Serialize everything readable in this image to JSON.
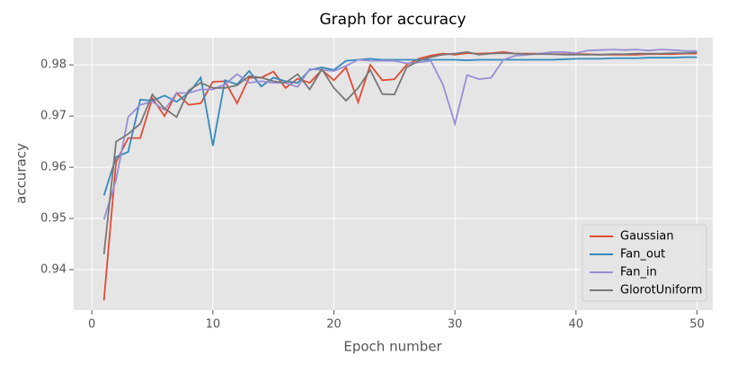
{
  "chart_data": {
    "type": "line",
    "title": "Graph for accuracy",
    "x_label": "Epoch number",
    "y_label": "accuracy",
    "x": [
      1,
      2,
      3,
      4,
      5,
      6,
      7,
      8,
      9,
      10,
      11,
      12,
      13,
      14,
      15,
      16,
      17,
      18,
      19,
      20,
      21,
      22,
      23,
      24,
      25,
      26,
      27,
      28,
      29,
      30,
      31,
      32,
      33,
      34,
      35,
      36,
      37,
      38,
      39,
      40,
      41,
      42,
      43,
      44,
      45,
      46,
      47,
      48,
      49,
      50
    ],
    "series": [
      {
        "name": "Gaussian",
        "color": "#E24A33",
        "values": [
          0.934,
          0.961,
          0.9657,
          0.9657,
          0.9735,
          0.97,
          0.9745,
          0.9722,
          0.9725,
          0.9767,
          0.9768,
          0.9725,
          0.9775,
          0.9775,
          0.9787,
          0.9755,
          0.9773,
          0.9765,
          0.979,
          0.977,
          0.9795,
          0.9727,
          0.98,
          0.977,
          0.9772,
          0.98,
          0.9812,
          0.9818,
          0.9822,
          0.982,
          0.9823,
          0.9822,
          0.9823,
          0.9825,
          0.9822,
          0.9822,
          0.9822,
          0.9821,
          0.9821,
          0.9821,
          0.9821,
          0.982,
          0.982,
          0.982,
          0.982,
          0.9821,
          0.9821,
          0.9821,
          0.9822,
          0.9822
        ]
      },
      {
        "name": "Fan_out",
        "color": "#348ABD",
        "values": [
          0.9545,
          0.962,
          0.963,
          0.9732,
          0.973,
          0.974,
          0.9728,
          0.9745,
          0.9775,
          0.9642,
          0.977,
          0.9762,
          0.9788,
          0.9758,
          0.9775,
          0.9768,
          0.9765,
          0.979,
          0.9795,
          0.979,
          0.9808,
          0.981,
          0.9812,
          0.981,
          0.981,
          0.981,
          0.981,
          0.981,
          0.981,
          0.981,
          0.9809,
          0.981,
          0.981,
          0.981,
          0.981,
          0.981,
          0.981,
          0.981,
          0.9811,
          0.9812,
          0.9812,
          0.9812,
          0.9813,
          0.9813,
          0.9813,
          0.9814,
          0.9814,
          0.9814,
          0.9815,
          0.9815
        ]
      },
      {
        "name": "Fan_in",
        "color": "#988ED5",
        "values": [
          0.9498,
          0.9575,
          0.9698,
          0.9722,
          0.9728,
          0.9712,
          0.9745,
          0.9745,
          0.9752,
          0.9752,
          0.9762,
          0.9782,
          0.9765,
          0.9768,
          0.9765,
          0.9765,
          0.9757,
          0.9792,
          0.979,
          0.9788,
          0.9798,
          0.981,
          0.9808,
          0.9808,
          0.9808,
          0.9803,
          0.9805,
          0.9808,
          0.9762,
          0.9685,
          0.978,
          0.9772,
          0.9775,
          0.981,
          0.9818,
          0.982,
          0.9822,
          0.9825,
          0.9825,
          0.9823,
          0.9828,
          0.9829,
          0.983,
          0.9829,
          0.983,
          0.9828,
          0.983,
          0.9829,
          0.9827,
          0.9827
        ]
      },
      {
        "name": "GlorotUniform",
        "color": "#777777",
        "values": [
          0.943,
          0.965,
          0.9665,
          0.9685,
          0.9742,
          0.9715,
          0.9698,
          0.975,
          0.9765,
          0.9755,
          0.9755,
          0.976,
          0.9778,
          0.9775,
          0.9768,
          0.9765,
          0.9782,
          0.9752,
          0.9792,
          0.9755,
          0.973,
          0.9755,
          0.979,
          0.9743,
          0.9742,
          0.9795,
          0.9808,
          0.9815,
          0.982,
          0.9822,
          0.9825,
          0.982,
          0.9822,
          0.9823,
          0.9822,
          0.9821,
          0.9821,
          0.9821,
          0.982,
          0.982,
          0.982,
          0.982,
          0.9821,
          0.9821,
          0.9822,
          0.9822,
          0.9822,
          0.9823,
          0.9823,
          0.9824
        ]
      }
    ],
    "xlim": [
      -1.5,
      51.3
    ],
    "ylim": [
      0.9321,
      0.9853
    ],
    "xticks": [
      0,
      10,
      20,
      30,
      40,
      50
    ],
    "yticks": [
      0.94,
      0.95,
      0.96,
      0.97,
      0.98
    ],
    "grid": true,
    "legend": "lower right"
  }
}
